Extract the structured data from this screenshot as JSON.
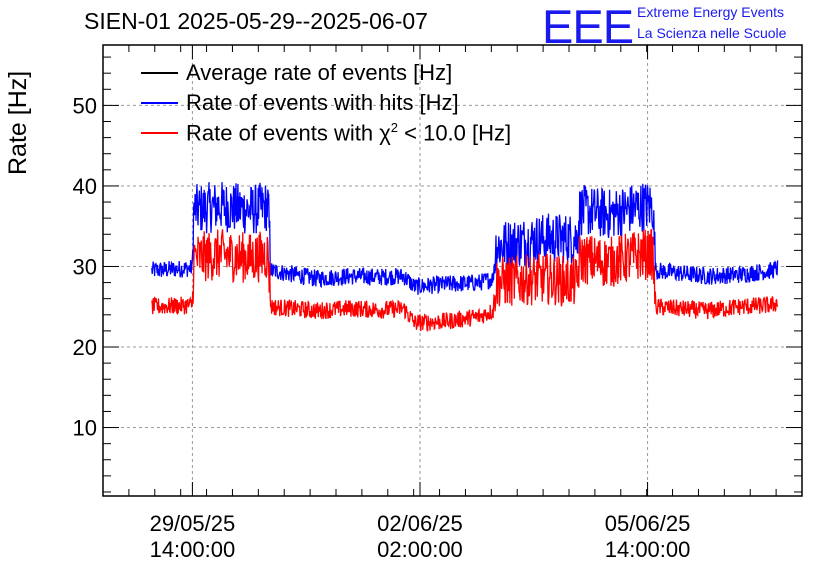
{
  "page": {
    "title": "SIEN-01 2025-05-29--2025-06-07",
    "logo": "EEE",
    "org_line1": "Extreme Energy Events",
    "org_line2": "La Scienza nelle Scuole"
  },
  "legend": {
    "items": [
      {
        "label": "Average rate of events [Hz]",
        "color": "#000000"
      },
      {
        "label": "Rate of events with hits [Hz]",
        "color": "#0000ff"
      },
      {
        "label_prefix": "Rate of events with ",
        "chi": "χ",
        "sup": "2",
        "label_suffix": " < 10.0 [Hz]",
        "color": "#ff0000"
      }
    ]
  },
  "chart_data": {
    "type": "line",
    "title": "SIEN-01 2025-05-29--2025-06-07",
    "ylabel": "Rate [Hz]",
    "xlabel": "",
    "ylim": [
      1.5,
      57.5
    ],
    "yticks": [
      10,
      20,
      30,
      40,
      50
    ],
    "xlim": [
      "2025-05-28 05:00",
      "2025-06-07 23:00"
    ],
    "xticks": [
      {
        "at": "2025-05-29 14:00",
        "line1": "29/05/25",
        "line2": "14:00:00"
      },
      {
        "at": "2025-06-02 02:00",
        "line1": "02/06/25",
        "line2": "02:00:00"
      },
      {
        "at": "2025-06-05 14:00",
        "line1": "05/06/25",
        "line2": "14:00:00"
      }
    ],
    "grid": true,
    "legend_position": "top-left",
    "series": [
      {
        "name": "Rate of events with hits [Hz]",
        "color": "#0000ff",
        "points": [
          [
            "2025-05-28 23:00",
            29.5
          ],
          [
            "2025-05-29 14:00",
            29.8
          ],
          [
            "2025-05-29 14:30",
            37.0
          ],
          [
            "2025-05-30 00:00",
            37.5
          ],
          [
            "2025-05-30 12:00",
            37.0
          ],
          [
            "2025-05-30 18:00",
            37.5
          ],
          [
            "2025-05-30 19:00",
            29.5
          ],
          [
            "2025-05-31 12:00",
            28.5
          ],
          [
            "2025-06-01 00:00",
            28.8
          ],
          [
            "2025-06-01 12:00",
            28.7
          ],
          [
            "2025-06-01 20:00",
            28.8
          ],
          [
            "2025-06-02 00:00",
            27.5
          ],
          [
            "2025-06-02 12:00",
            27.8
          ],
          [
            "2025-06-03 00:00",
            28.0
          ],
          [
            "2025-06-03 05:00",
            28.5
          ],
          [
            "2025-06-03 06:00",
            32.5
          ],
          [
            "2025-06-04 00:00",
            33.5
          ],
          [
            "2025-06-04 12:00",
            33.5
          ],
          [
            "2025-06-04 13:00",
            37.0
          ],
          [
            "2025-06-05 00:00",
            36.5
          ],
          [
            "2025-06-05 12:00",
            37.5
          ],
          [
            "2025-06-05 16:00",
            37.5
          ],
          [
            "2025-06-05 17:00",
            29.5
          ],
          [
            "2025-06-06 12:00",
            28.8
          ],
          [
            "2025-06-07 00:00",
            29.0
          ],
          [
            "2025-06-07 12:00",
            29.5
          ],
          [
            "2025-06-07 14:00",
            29.8
          ]
        ]
      },
      {
        "name": "Rate of events with χ2 < 10.0 [Hz]",
        "color": "#ff0000",
        "points": [
          [
            "2025-05-28 23:00",
            25.0
          ],
          [
            "2025-05-29 14:00",
            25.2
          ],
          [
            "2025-05-29 14:30",
            31.0
          ],
          [
            "2025-05-30 00:00",
            31.5
          ],
          [
            "2025-05-30 12:00",
            31.0
          ],
          [
            "2025-05-30 18:00",
            31.5
          ],
          [
            "2025-05-30 19:00",
            25.0
          ],
          [
            "2025-05-31 12:00",
            24.5
          ],
          [
            "2025-06-01 00:00",
            24.8
          ],
          [
            "2025-06-01 12:00",
            24.6
          ],
          [
            "2025-06-01 20:00",
            24.8
          ],
          [
            "2025-06-02 00:00",
            23.0
          ],
          [
            "2025-06-02 12:00",
            23.2
          ],
          [
            "2025-06-03 00:00",
            23.8
          ],
          [
            "2025-06-03 05:00",
            24.5
          ],
          [
            "2025-06-03 06:00",
            28.0
          ],
          [
            "2025-06-04 00:00",
            28.5
          ],
          [
            "2025-06-04 12:00",
            28.0
          ],
          [
            "2025-06-04 13:00",
            31.0
          ],
          [
            "2025-06-05 00:00",
            30.5
          ],
          [
            "2025-06-05 12:00",
            31.5
          ],
          [
            "2025-06-05 16:00",
            31.5
          ],
          [
            "2025-06-05 17:00",
            25.0
          ],
          [
            "2025-06-06 12:00",
            24.5
          ],
          [
            "2025-06-07 00:00",
            25.0
          ],
          [
            "2025-06-07 12:00",
            25.2
          ],
          [
            "2025-06-07 14:00",
            25.5
          ]
        ]
      }
    ]
  }
}
